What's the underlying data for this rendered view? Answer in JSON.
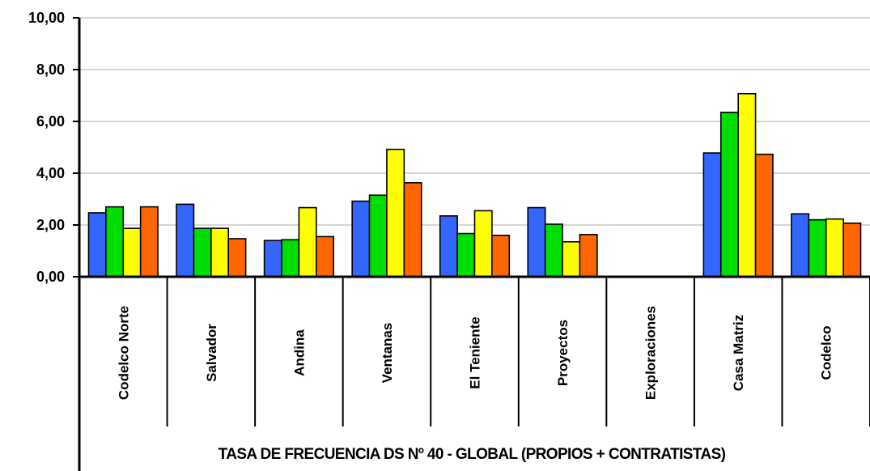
{
  "chart_data": {
    "type": "bar",
    "title": "TASA DE FRECUENCIA DS Nº 40 - GLOBAL (PROPIOS + CONTRATISTAS)",
    "xlabel": "",
    "ylabel": "",
    "ylim": [
      0,
      10
    ],
    "yticks": [
      "0,00",
      "2,00",
      "4,00",
      "6,00",
      "8,00",
      "10,00"
    ],
    "categories": [
      "Codelco Norte",
      "Salvador",
      "Andina",
      "Ventanas",
      "El Teniente",
      "Proyectos",
      "Exploraciones",
      "Casa Matriz",
      "Codelco"
    ],
    "series": [
      {
        "color": "#3366ff",
        "values": [
          2.47,
          2.8,
          1.4,
          2.92,
          2.35,
          2.67,
          0,
          4.78,
          2.43
        ]
      },
      {
        "color": "#00dd00",
        "values": [
          2.7,
          1.87,
          1.43,
          3.15,
          1.67,
          2.03,
          0,
          6.35,
          2.2
        ]
      },
      {
        "color": "#ffff00",
        "values": [
          1.87,
          1.87,
          2.67,
          4.92,
          2.55,
          1.35,
          0,
          7.07,
          2.23
        ]
      },
      {
        "color": "#ff6600",
        "values": [
          2.7,
          1.47,
          1.55,
          3.63,
          1.6,
          1.63,
          0,
          4.73,
          2.07
        ]
      }
    ],
    "grid": true,
    "legend": "none"
  }
}
